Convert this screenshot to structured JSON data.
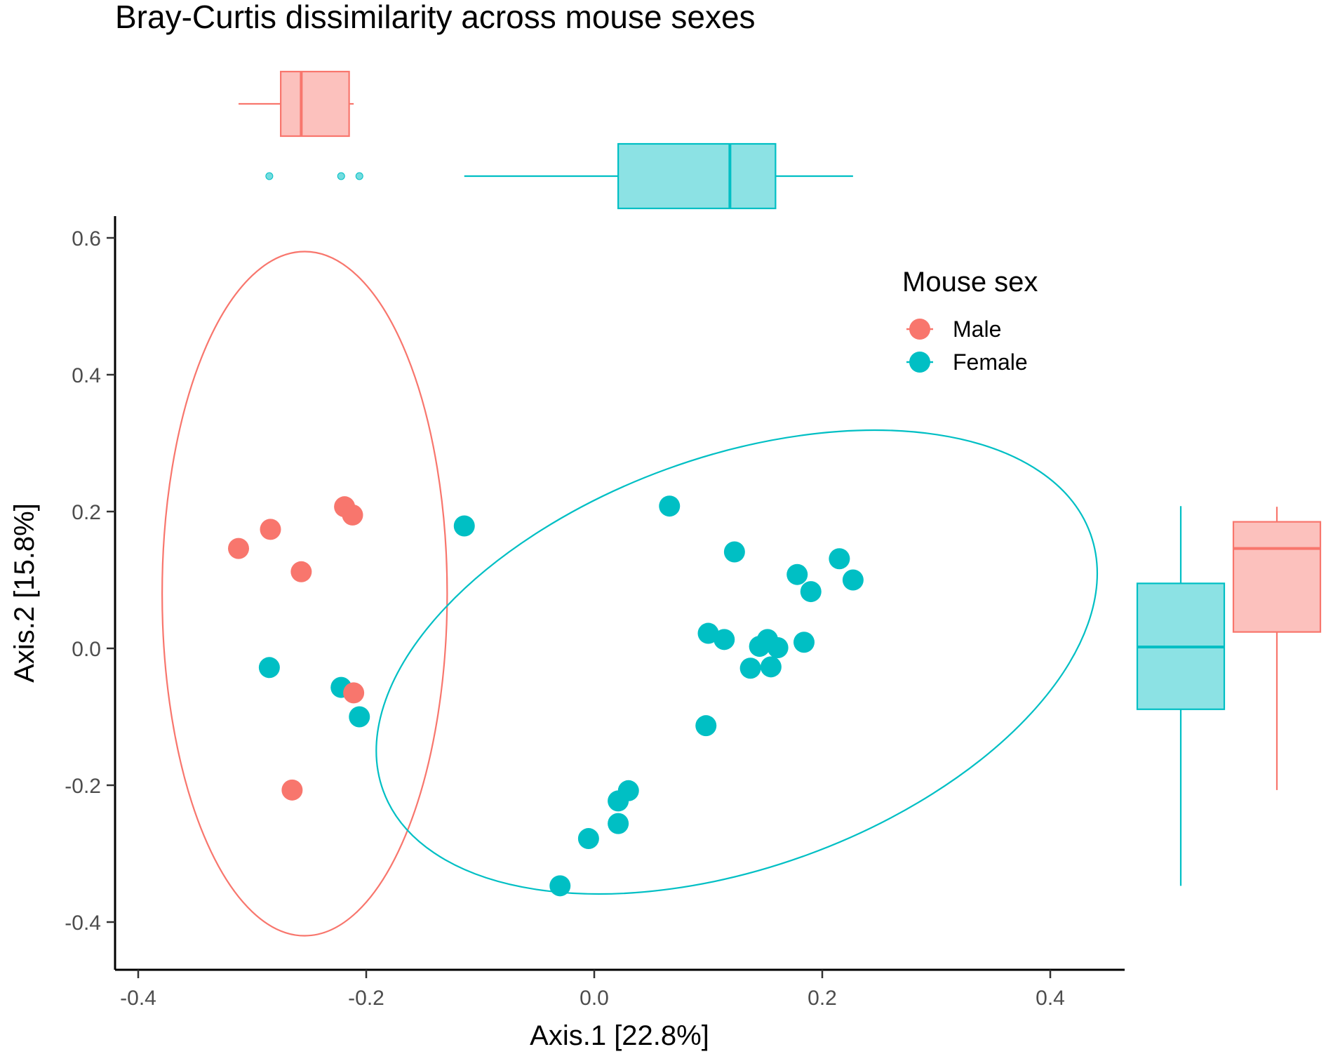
{
  "chart_data": {
    "type": "scatter",
    "title": "Bray-Curtis dissimilarity across mouse sexes",
    "xlabel": "Axis.1   [22.8%]",
    "ylabel": "Axis.2   [15.8%]",
    "xlim": [
      -0.42,
      0.47
    ],
    "ylim": [
      -0.48,
      0.63
    ],
    "xticks": [
      -0.4,
      -0.2,
      0.0,
      0.2,
      0.4
    ],
    "xtick_labels": [
      "-0.4",
      "-0.2",
      "0.0",
      "0.2",
      "0.4"
    ],
    "yticks": [
      -0.4,
      -0.2,
      0.0,
      0.2,
      0.4,
      0.6
    ],
    "ytick_labels": [
      "-0.4",
      "-0.2",
      "0.0",
      "0.2",
      "0.4",
      "0.6"
    ],
    "grid": false,
    "legend": {
      "title": "Mouse sex",
      "position": "top-right"
    },
    "series": [
      {
        "name": "Male",
        "color": "#F8766D",
        "points": [
          [
            -0.219,
            0.207
          ],
          [
            -0.212,
            0.195
          ],
          [
            -0.284,
            0.174
          ],
          [
            -0.312,
            0.146
          ],
          [
            -0.257,
            0.112
          ],
          [
            -0.211,
            -0.065
          ],
          [
            -0.265,
            -0.207
          ]
        ],
        "ellipse": {
          "center": [
            -0.254,
            0.08
          ],
          "rx": 0.125,
          "ry": 0.5,
          "angle_deg": 0
        },
        "x_box": {
          "whisker_low": -0.312,
          "q1": -0.275,
          "median": -0.257,
          "q3": -0.215,
          "whisker_high": -0.211,
          "outliers": []
        },
        "y_box": {
          "whisker_low": -0.207,
          "q1": 0.024,
          "median": 0.146,
          "q3": 0.185,
          "whisker_high": 0.207,
          "outliers": []
        }
      },
      {
        "name": "Female",
        "color": "#00BFC4",
        "points": [
          [
            -0.114,
            0.179
          ],
          [
            0.066,
            0.208
          ],
          [
            0.123,
            0.141
          ],
          [
            0.178,
            0.108
          ],
          [
            0.215,
            0.131
          ],
          [
            0.227,
            0.1
          ],
          [
            0.19,
            0.083
          ],
          [
            0.1,
            0.022
          ],
          [
            0.114,
            0.013
          ],
          [
            0.152,
            0.013
          ],
          [
            0.145,
            0.003
          ],
          [
            0.161,
            0.001
          ],
          [
            0.184,
            0.009
          ],
          [
            0.137,
            -0.029
          ],
          [
            0.155,
            -0.027
          ],
          [
            0.098,
            -0.113
          ],
          [
            -0.285,
            -0.028
          ],
          [
            -0.222,
            -0.057
          ],
          [
            -0.206,
            -0.1
          ],
          [
            0.03,
            -0.208
          ],
          [
            0.021,
            -0.223
          ],
          [
            0.021,
            -0.256
          ],
          [
            -0.005,
            -0.278
          ],
          [
            -0.03,
            -0.347
          ]
        ],
        "ellipse": {
          "center": [
            0.125,
            -0.02
          ],
          "rx": 0.33,
          "ry": 0.3,
          "angle_deg": 20
        },
        "x_box": {
          "whisker_low": -0.114,
          "q1": 0.021,
          "median": 0.119,
          "q3": 0.159,
          "whisker_high": 0.227,
          "outliers": [
            -0.285,
            -0.222,
            -0.206
          ]
        },
        "y_box": {
          "whisker_low": -0.347,
          "q1": -0.089,
          "median": 0.002,
          "q3": 0.095,
          "whisker_high": 0.208,
          "outliers": []
        }
      }
    ]
  }
}
